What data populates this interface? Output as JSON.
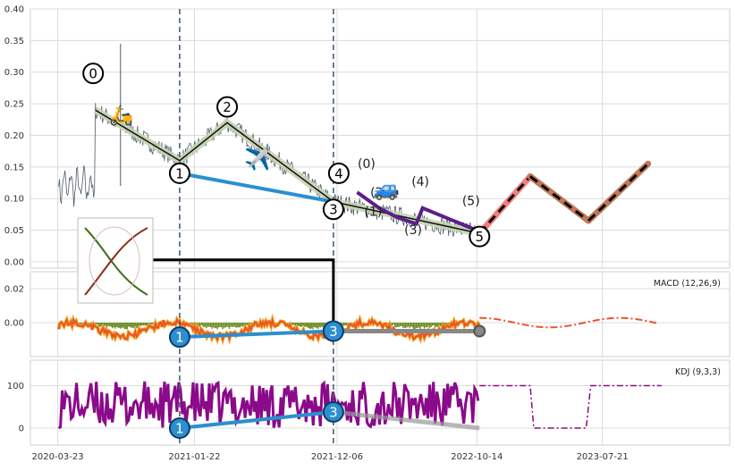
{
  "chart_data": {
    "type": "line",
    "x_dates": [
      "2020-03-23",
      "2021-01-22",
      "2021-12-06",
      "2022-10-14",
      "2023-07-21"
    ],
    "panels": {
      "price": {
        "ylim": [
          -0.01,
          0.4
        ],
        "yticks": [
          0.0,
          0.05,
          0.1,
          0.15,
          0.2,
          0.25,
          0.3,
          0.35,
          0.4
        ],
        "ytick_labels": [
          "0.00",
          "0.05",
          "0.10",
          "0.15",
          "0.20",
          "0.25",
          "0.30",
          "0.35",
          "0.40"
        ],
        "main_wave_points": [
          {
            "x": "2020-06-15",
            "y": 0.24
          },
          {
            "x": "2020-12-20",
            "y": 0.16
          },
          {
            "x": "2021-04-05",
            "y": 0.22
          },
          {
            "x": "2021-11-28",
            "y": 0.095
          },
          {
            "x": "2022-10-20",
            "y": 0.045
          },
          {
            "x": "2023-02-10",
            "y": 0.135
          },
          {
            "x": "2023-06-20",
            "y": 0.065
          },
          {
            "x": "2023-10-31",
            "y": 0.155
          }
        ],
        "projection_start_index": 4,
        "wave_labels": [
          {
            "text": "0",
            "x": "2020-06-10",
            "y": 0.298
          },
          {
            "text": "1",
            "x": "2020-12-20",
            "y": 0.14
          },
          {
            "text": "2",
            "x": "2021-04-05",
            "y": 0.245
          },
          {
            "text": "3",
            "x": "2021-11-28",
            "y": 0.083
          },
          {
            "text": "4",
            "x": "2021-12-10",
            "y": 0.14
          },
          {
            "text": "5",
            "x": "2022-10-20",
            "y": 0.04
          }
        ],
        "sub_wave_labels": [
          {
            "text": "(0)",
            "x": "2022-02-10",
            "y": 0.148
          },
          {
            "text": "(1)",
            "x": "2022-02-25",
            "y": 0.073
          },
          {
            "text": "(2)",
            "x": "2022-03-10",
            "y": 0.103
          },
          {
            "text": "(3)",
            "x": "2022-05-25",
            "y": 0.044
          },
          {
            "text": "(4)",
            "x": "2022-06-10",
            "y": 0.12
          },
          {
            "text": "(5)",
            "x": "2022-10-01",
            "y": 0.09
          }
        ],
        "trend_line": [
          {
            "x": "2020-12-20",
            "y": 0.14
          },
          {
            "x": "2021-11-28",
            "y": 0.095
          }
        ]
      },
      "macd": {
        "label": "MACD (12,26,9)",
        "ylim": [
          -0.02,
          0.03
        ],
        "yticks": [
          0.0,
          0.02
        ],
        "ytick_labels": [
          "0.00",
          "0.02"
        ],
        "trend_line": [
          {
            "x": "2020-12-20",
            "y": -0.0085
          },
          {
            "x": "2021-11-28",
            "y": -0.005
          }
        ],
        "flat_line": [
          {
            "x": "2021-11-28",
            "y": -0.005
          },
          {
            "x": "2022-10-20",
            "y": -0.005
          }
        ],
        "labels": [
          {
            "text": "1",
            "x": "2020-12-20",
            "y": -0.0085
          },
          {
            "text": "3",
            "x": "2021-11-28",
            "y": -0.005
          }
        ]
      },
      "kdj": {
        "label": "KDJ (9,3,3)",
        "ylim": [
          -40,
          160
        ],
        "yticks": [
          0,
          100
        ],
        "ytick_labels": [
          "0",
          "100"
        ],
        "trend_line": [
          {
            "x": "2020-12-20",
            "y": 0
          },
          {
            "x": "2021-11-28",
            "y": 38
          }
        ],
        "labels": [
          {
            "text": "1",
            "x": "2020-12-20",
            "y": 0
          },
          {
            "text": "3",
            "x": "2021-11-28",
            "y": 38
          }
        ]
      }
    },
    "vlines": [
      "2020-12-20",
      "2021-11-28"
    ],
    "grid": true
  },
  "colors": {
    "price": "#4c5b6b",
    "wave": "#111111",
    "wave_shadow": "#c6d4b3",
    "trend": "#2b8fd0",
    "projection_red": "#f08080",
    "projection_brown": "#c0785a",
    "macd": "#e8552a",
    "kdj": "#8a0a8a",
    "vline": "#4a6078",
    "bar_pos": "#b22222",
    "bar_neg": "#6b8e23"
  }
}
